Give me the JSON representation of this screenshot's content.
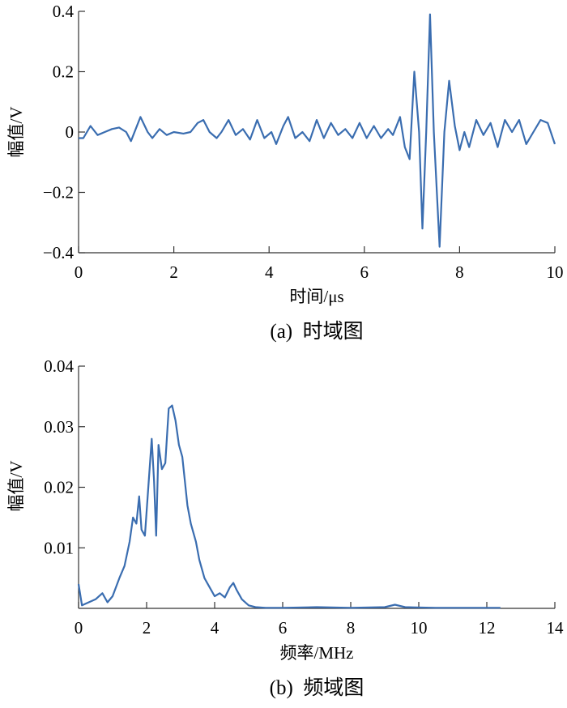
{
  "chart_data": [
    {
      "type": "line",
      "caption": "(a)  时域图",
      "xlabel": "时间/μs",
      "ylabel": "幅值/V",
      "xlim": [
        0,
        10
      ],
      "ylim": [
        -0.4,
        0.4
      ],
      "xticks": [
        0,
        2,
        4,
        6,
        8,
        10
      ],
      "yticks": [
        0.4,
        0.2,
        0,
        -0.2,
        -0.4
      ],
      "yticklabels": [
        "0.4",
        "0.2",
        "0",
        "−0.2",
        "−0.4"
      ],
      "grid": false,
      "line_color": "#3a6db0",
      "series": [
        {
          "points": [
            [
              0.0,
              -0.02
            ],
            [
              0.1,
              -0.02
            ],
            [
              0.25,
              0.02
            ],
            [
              0.4,
              -0.01
            ],
            [
              0.55,
              0.0
            ],
            [
              0.7,
              0.01
            ],
            [
              0.85,
              0.015
            ],
            [
              1.0,
              0.0
            ],
            [
              1.1,
              -0.03
            ],
            [
              1.3,
              0.05
            ],
            [
              1.45,
              0.0
            ],
            [
              1.55,
              -0.02
            ],
            [
              1.7,
              0.01
            ],
            [
              1.85,
              -0.01
            ],
            [
              2.0,
              0.0
            ],
            [
              2.2,
              -0.005
            ],
            [
              2.35,
              0.0
            ],
            [
              2.5,
              0.03
            ],
            [
              2.62,
              0.04
            ],
            [
              2.75,
              0.0
            ],
            [
              2.9,
              -0.02
            ],
            [
              3.0,
              0.0
            ],
            [
              3.15,
              0.04
            ],
            [
              3.3,
              -0.01
            ],
            [
              3.45,
              0.01
            ],
            [
              3.6,
              -0.025
            ],
            [
              3.75,
              0.04
            ],
            [
              3.9,
              -0.02
            ],
            [
              4.05,
              0.0
            ],
            [
              4.15,
              -0.04
            ],
            [
              4.3,
              0.02
            ],
            [
              4.4,
              0.05
            ],
            [
              4.55,
              -0.02
            ],
            [
              4.7,
              0.0
            ],
            [
              4.85,
              -0.03
            ],
            [
              5.0,
              0.04
            ],
            [
              5.15,
              -0.02
            ],
            [
              5.3,
              0.03
            ],
            [
              5.45,
              -0.01
            ],
            [
              5.6,
              0.01
            ],
            [
              5.75,
              -0.02
            ],
            [
              5.9,
              0.03
            ],
            [
              6.05,
              -0.02
            ],
            [
              6.2,
              0.02
            ],
            [
              6.35,
              -0.02
            ],
            [
              6.5,
              0.01
            ],
            [
              6.6,
              -0.01
            ],
            [
              6.75,
              0.05
            ],
            [
              6.85,
              -0.05
            ],
            [
              6.95,
              -0.09
            ],
            [
              7.05,
              0.2
            ],
            [
              7.15,
              0.0
            ],
            [
              7.22,
              -0.32
            ],
            [
              7.3,
              0.0
            ],
            [
              7.38,
              0.39
            ],
            [
              7.46,
              0.0
            ],
            [
              7.58,
              -0.38
            ],
            [
              7.68,
              0.0
            ],
            [
              7.78,
              0.17
            ],
            [
              7.9,
              0.02
            ],
            [
              8.0,
              -0.06
            ],
            [
              8.1,
              0.0
            ],
            [
              8.2,
              -0.05
            ],
            [
              8.35,
              0.04
            ],
            [
              8.5,
              -0.01
            ],
            [
              8.65,
              0.03
            ],
            [
              8.8,
              -0.05
            ],
            [
              8.95,
              0.04
            ],
            [
              9.1,
              0.0
            ],
            [
              9.25,
              0.04
            ],
            [
              9.4,
              -0.04
            ],
            [
              9.55,
              0.0
            ],
            [
              9.7,
              0.04
            ],
            [
              9.85,
              0.03
            ],
            [
              10.0,
              -0.04
            ]
          ]
        }
      ]
    },
    {
      "type": "line",
      "caption": "(b)  频域图",
      "xlabel": "频率/MHz",
      "ylabel": "幅值/V",
      "xlim": [
        0,
        14
      ],
      "ylim": [
        0,
        0.04
      ],
      "xticks": [
        0,
        2,
        4,
        6,
        8,
        10,
        12,
        14
      ],
      "yticks": [
        0.04,
        0.03,
        0.02,
        0.01
      ],
      "yticklabels": [
        "0.04",
        "0.03",
        "0.02",
        "0.01"
      ],
      "grid": false,
      "line_color": "#3a6db0",
      "series": [
        {
          "points": [
            [
              0.0,
              0.004
            ],
            [
              0.1,
              0.0005
            ],
            [
              0.3,
              0.001
            ],
            [
              0.5,
              0.0015
            ],
            [
              0.7,
              0.0025
            ],
            [
              0.85,
              0.001
            ],
            [
              1.0,
              0.002
            ],
            [
              1.2,
              0.005
            ],
            [
              1.35,
              0.007
            ],
            [
              1.5,
              0.011
            ],
            [
              1.6,
              0.015
            ],
            [
              1.7,
              0.014
            ],
            [
              1.78,
              0.0185
            ],
            [
              1.85,
              0.013
            ],
            [
              1.95,
              0.012
            ],
            [
              2.05,
              0.02
            ],
            [
              2.15,
              0.028
            ],
            [
              2.22,
              0.021
            ],
            [
              2.28,
              0.012
            ],
            [
              2.35,
              0.027
            ],
            [
              2.45,
              0.023
            ],
            [
              2.55,
              0.024
            ],
            [
              2.65,
              0.033
            ],
            [
              2.75,
              0.0335
            ],
            [
              2.85,
              0.031
            ],
            [
              2.95,
              0.027
            ],
            [
              3.05,
              0.025
            ],
            [
              3.2,
              0.017
            ],
            [
              3.3,
              0.014
            ],
            [
              3.45,
              0.011
            ],
            [
              3.55,
              0.008
            ],
            [
              3.7,
              0.005
            ],
            [
              3.85,
              0.0035
            ],
            [
              4.0,
              0.002
            ],
            [
              4.15,
              0.0025
            ],
            [
              4.3,
              0.0018
            ],
            [
              4.45,
              0.0035
            ],
            [
              4.55,
              0.0042
            ],
            [
              4.65,
              0.003
            ],
            [
              4.8,
              0.0015
            ],
            [
              5.0,
              0.0005
            ],
            [
              5.2,
              0.0002
            ],
            [
              5.5,
              0.0001
            ],
            [
              6.0,
              0.0001
            ],
            [
              7.0,
              0.0002
            ],
            [
              8.0,
              0.0001
            ],
            [
              9.0,
              0.0002
            ],
            [
              9.3,
              0.0006
            ],
            [
              9.6,
              0.0002
            ],
            [
              10.5,
              0.0001
            ],
            [
              12.0,
              0.0001
            ],
            [
              12.4,
              0.0001
            ]
          ]
        }
      ]
    }
  ]
}
